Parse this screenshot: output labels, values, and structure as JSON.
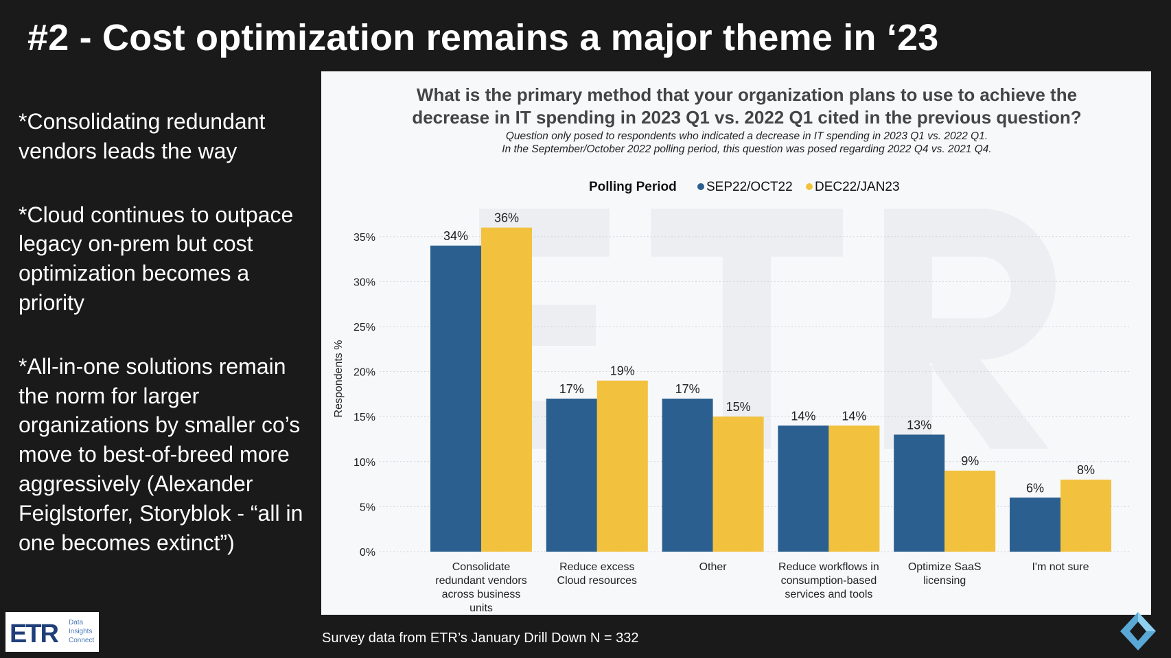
{
  "slide": {
    "title": "#2 - Cost optimization remains a major theme in ‘23",
    "bullets": [
      "*Consolidating redundant vendors leads the way",
      "*Cloud continues to outpace legacy on-prem but cost optimization becomes a priority",
      "*All-in-one solutions remain the norm for larger organizations by smaller co’s move to best-of-breed more aggressively (Alexander Feiglstorfer, Storyblok - “all in one becomes extinct”)"
    ],
    "footer": "Survey data from ETR’s January Drill Down N = 332",
    "logo": {
      "text": "ETR",
      "tagline": [
        "Data",
        "Insights",
        "Connect"
      ]
    }
  },
  "chart_data": {
    "type": "bar",
    "title": "What is the primary method that your organization plans to use to achieve the decrease in IT spending in 2023 Q1 vs. 2022 Q1 cited in the previous question?",
    "title_lines": [
      "What is the primary method that your organization plans to use to achieve the",
      "decrease in IT spending in 2023 Q1 vs. 2022 Q1 cited in the previous question?"
    ],
    "subtitle_lines": [
      "Question only posed to respondents who indicated a decrease in IT spending in 2023 Q1 vs. 2022 Q1.",
      "In the September/October 2022 polling period, this question was posed regarding 2022 Q4 vs. 2021 Q4."
    ],
    "legend_title": "Polling Period",
    "legend_position": "top",
    "ylabel": "Respondents %",
    "xlabel": "",
    "ylim": [
      0,
      37
    ],
    "yticks": [
      0,
      5,
      10,
      15,
      20,
      25,
      30,
      35
    ],
    "ytick_labels": [
      "0%",
      "5%",
      "10%",
      "15%",
      "20%",
      "25%",
      "30%",
      "35%"
    ],
    "grid": "horizontal dotted",
    "categories": [
      [
        "Consolidate",
        "redundant vendors",
        "across business",
        "units"
      ],
      [
        "Reduce excess",
        "Cloud resources"
      ],
      [
        "Other"
      ],
      [
        "Reduce workflows in",
        "consumption-based",
        "services and tools"
      ],
      [
        "Optimize SaaS",
        "licensing"
      ],
      [
        "I'm not sure"
      ]
    ],
    "series": [
      {
        "name": "SEP22/OCT22",
        "color": "#2b5f8f",
        "values": [
          34,
          17,
          17,
          14,
          13,
          6
        ],
        "labels": [
          "34%",
          "17%",
          "17%",
          "14%",
          "13%",
          "6%"
        ]
      },
      {
        "name": "DEC22/JAN23",
        "color": "#f2c13e",
        "values": [
          36,
          19,
          15,
          14,
          9,
          8
        ],
        "labels": [
          "36%",
          "19%",
          "15%",
          "14%",
          "9%",
          "8%"
        ]
      }
    ],
    "watermark": "ETR"
  }
}
